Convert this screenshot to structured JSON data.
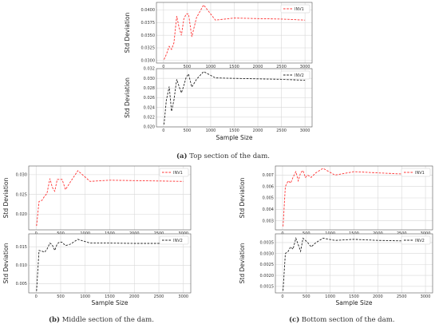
{
  "figure": {
    "caption_a_label": "(a)",
    "caption_a_text": " Top section of the dam.",
    "caption_b_label": "(b)",
    "caption_b_text": " Middle section of the dam.",
    "caption_c_label": "(c)",
    "caption_c_text": " Bottom section of the dam."
  },
  "colors": {
    "inv1": "#ff3333",
    "inv2": "#222222",
    "grid": "#d8d8d8",
    "frame": "#555555"
  },
  "chart_data": [
    {
      "id": "a",
      "type": "line",
      "group": "Top section of the dam",
      "ylabel": "Std Deviation",
      "xlabel": "",
      "xlim": [
        -150,
        3150
      ],
      "ylim": [
        0.0295,
        0.0415
      ],
      "xticks": [
        0,
        500,
        1000,
        1500,
        2000,
        2500,
        3000
      ],
      "xtick_labels": [
        "0",
        "500",
        "1000",
        "1500",
        "2000",
        "2500",
        "3000"
      ],
      "yticks": [
        0.03,
        0.0325,
        0.035,
        0.0375,
        0.04
      ],
      "ytick_labels": [
        "0.0300",
        "0.0325",
        "0.0350",
        "0.0375",
        "0.0400"
      ],
      "legend": "top-right",
      "series": [
        {
          "name": "INV1",
          "color_key": "inv1",
          "x": [
            10,
            60,
            120,
            170,
            220,
            280,
            330,
            380,
            430,
            480,
            530,
            600,
            700,
            850,
            1100,
            1500,
            2000,
            2500,
            3000
          ],
          "y": [
            0.0302,
            0.0312,
            0.0328,
            0.0322,
            0.0335,
            0.0388,
            0.0365,
            0.035,
            0.0382,
            0.0392,
            0.0392,
            0.0347,
            0.0385,
            0.041,
            0.038,
            0.0384,
            0.0383,
            0.0382,
            0.038
          ]
        }
      ]
    },
    {
      "id": "a2",
      "type": "line",
      "group": "Top section of the dam",
      "ylabel": "Std Deviation",
      "xlabel": "Sample Size",
      "xlim": [
        -150,
        3150
      ],
      "ylim": [
        0.02,
        0.032
      ],
      "xticks": [
        0,
        500,
        1000,
        1500,
        2000,
        2500,
        3000
      ],
      "xtick_labels": [
        "0",
        "500",
        "1000",
        "1500",
        "2000",
        "2500",
        "3000"
      ],
      "yticks": [
        0.02,
        0.022,
        0.024,
        0.026,
        0.028,
        0.03,
        0.032
      ],
      "ytick_labels": [
        "0.020",
        "0.022",
        "0.024",
        "0.026",
        "0.028",
        "0.030",
        "0.032"
      ],
      "legend": "top-right",
      "series": [
        {
          "name": "INV2",
          "color_key": "inv2",
          "x": [
            10,
            60,
            120,
            170,
            220,
            280,
            330,
            380,
            430,
            480,
            530,
            600,
            700,
            850,
            1100,
            1500,
            2000,
            2500,
            3000
          ],
          "y": [
            0.0205,
            0.0255,
            0.0283,
            0.0232,
            0.0255,
            0.0298,
            0.0283,
            0.027,
            0.0285,
            0.0302,
            0.0309,
            0.0282,
            0.0298,
            0.0314,
            0.0301,
            0.03,
            0.0299,
            0.0298,
            0.0296
          ]
        }
      ]
    },
    {
      "id": "b",
      "type": "line",
      "group": "Middle section of the dam",
      "ylabel": "Std Deviation",
      "xlabel": "",
      "xlim": [
        -150,
        3150
      ],
      "ylim": [
        0.016,
        0.0322
      ],
      "xticks": [
        0,
        500,
        1000,
        1500,
        2000,
        2500,
        3000
      ],
      "xtick_labels": [
        "0",
        "500",
        "1000",
        "1500",
        "2000",
        "2500",
        "3000"
      ],
      "yticks": [
        0.02,
        0.025,
        0.03
      ],
      "ytick_labels": [
        "0.020",
        "0.025",
        "0.030"
      ],
      "legend": "top-right",
      "series": [
        {
          "name": "INV1",
          "color_key": "inv1",
          "x": [
            10,
            60,
            120,
            170,
            220,
            280,
            330,
            380,
            430,
            480,
            530,
            600,
            700,
            850,
            1100,
            1500,
            2000,
            2500,
            3000
          ],
          "y": [
            0.017,
            0.0232,
            0.0235,
            0.0245,
            0.0252,
            0.029,
            0.0268,
            0.0258,
            0.0288,
            0.0288,
            0.0288,
            0.0262,
            0.0282,
            0.031,
            0.0283,
            0.0286,
            0.0285,
            0.0284,
            0.0283
          ]
        }
      ]
    },
    {
      "id": "b2",
      "type": "line",
      "group": "Middle section of the dam",
      "ylabel": "Std Deviation",
      "xlabel": "Sample Size",
      "xlim": [
        -150,
        3150
      ],
      "ylim": [
        0.0025,
        0.0185
      ],
      "xticks": [
        0,
        500,
        1000,
        1500,
        2000,
        2500,
        3000
      ],
      "xtick_labels": [
        "0",
        "500",
        "1000",
        "1500",
        "2000",
        "2500",
        "3000"
      ],
      "yticks": [
        0.005,
        0.01,
        0.015
      ],
      "ytick_labels": [
        "0.005",
        "0.010",
        "0.015"
      ],
      "legend": "top-right",
      "series": [
        {
          "name": "INV2",
          "color_key": "inv2",
          "x": [
            10,
            60,
            120,
            170,
            220,
            280,
            330,
            380,
            430,
            480,
            530,
            600,
            700,
            850,
            1100,
            1500,
            2000,
            2500,
            3000
          ],
          "y": [
            0.003,
            0.014,
            0.0138,
            0.0135,
            0.0143,
            0.016,
            0.0155,
            0.014,
            0.0158,
            0.0163,
            0.0162,
            0.0153,
            0.0157,
            0.017,
            0.016,
            0.016,
            0.0159,
            0.0159,
            0.0159
          ]
        }
      ]
    },
    {
      "id": "c",
      "type": "line",
      "group": "Bottom section of the dam",
      "ylabel": "Std Deviation",
      "xlabel": "",
      "xlim": [
        -150,
        3150
      ],
      "ylim": [
        0.0022,
        0.0078
      ],
      "xticks": [
        0,
        500,
        1000,
        1500,
        2000,
        2500,
        3000
      ],
      "xtick_labels": [
        "0",
        "500",
        "1000",
        "1500",
        "2000",
        "2500",
        "3000"
      ],
      "yticks": [
        0.003,
        0.004,
        0.005,
        0.006,
        0.007
      ],
      "ytick_labels": [
        "0.003",
        "0.004",
        "0.005",
        "0.006",
        "0.007"
      ],
      "legend": "top-right",
      "series": [
        {
          "name": "INV1",
          "color_key": "inv1",
          "x": [
            10,
            60,
            120,
            170,
            220,
            280,
            330,
            380,
            430,
            480,
            530,
            600,
            700,
            850,
            1100,
            1500,
            2000,
            2500,
            3000
          ],
          "y": [
            0.0025,
            0.006,
            0.0065,
            0.0063,
            0.0068,
            0.0073,
            0.0065,
            0.0072,
            0.0074,
            0.0068,
            0.007,
            0.0068,
            0.0072,
            0.0076,
            0.007,
            0.0073,
            0.0072,
            0.0071,
            0.007
          ]
        }
      ]
    },
    {
      "id": "c2",
      "type": "line",
      "group": "Bottom section of the dam",
      "ylabel": "Std Deviation",
      "xlabel": "Sample Size",
      "xlim": [
        -150,
        3150
      ],
      "ylim": [
        0.0012,
        0.0039
      ],
      "xticks": [
        0,
        500,
        1000,
        1500,
        2000,
        2500,
        3000
      ],
      "xtick_labels": [
        "0",
        "500",
        "1000",
        "1500",
        "2000",
        "2500",
        "3000"
      ],
      "yticks": [
        0.0015,
        0.002,
        0.0025,
        0.003,
        0.0035
      ],
      "ytick_labels": [
        "0.0015",
        "0.0020",
        "0.0025",
        "0.0030",
        "0.0035"
      ],
      "legend": "top-right",
      "series": [
        {
          "name": "INV2",
          "color_key": "inv2",
          "x": [
            10,
            60,
            120,
            170,
            220,
            280,
            330,
            380,
            430,
            480,
            530,
            600,
            700,
            850,
            1100,
            1500,
            2000,
            2500,
            3000
          ],
          "y": [
            0.0013,
            0.003,
            0.0031,
            0.0033,
            0.0032,
            0.0037,
            0.0034,
            0.0031,
            0.0037,
            0.0036,
            0.0035,
            0.0033,
            0.0035,
            0.0037,
            0.0036,
            0.00365,
            0.0036,
            0.00358,
            0.0036
          ]
        }
      ]
    }
  ]
}
